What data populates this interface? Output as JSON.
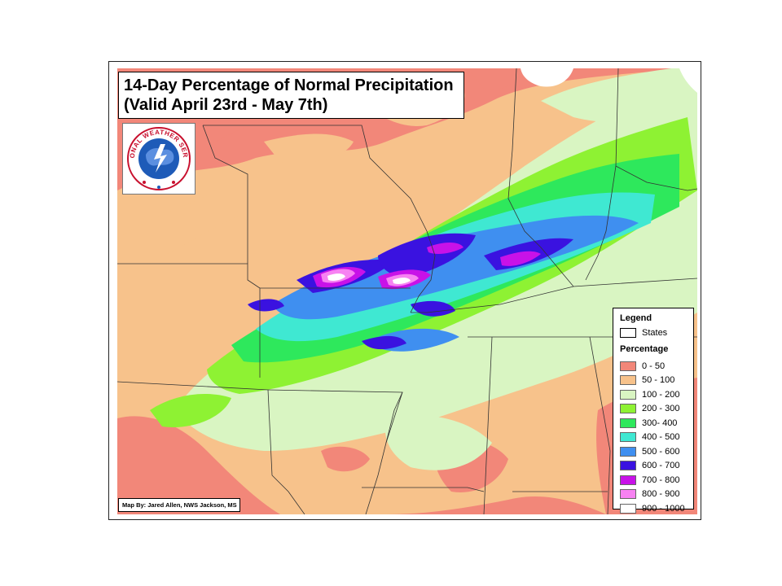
{
  "map": {
    "title_line1": "14-Day Percentage of Normal Precipitation",
    "title_line2": "(Valid April 23rd - May 7th)",
    "credit": "Map By: Jared Allen, NWS Jackson, MS",
    "logo_text": "NATIONAL WEATHER SERVICE"
  },
  "legend": {
    "title": "Legend",
    "states_label": "States",
    "percentage_title": "Percentage",
    "classes": [
      {
        "label": "0 - 50",
        "color": "#f28779"
      },
      {
        "label": "50 - 100",
        "color": "#f7c28b"
      },
      {
        "label": "100 - 200",
        "color": "#d9f5c2"
      },
      {
        "label": "200 - 300",
        "color": "#8ef233"
      },
      {
        "label": "300- 400",
        "color": "#2ee85c"
      },
      {
        "label": "400 - 500",
        "color": "#3fe8d2"
      },
      {
        "label": "500 - 600",
        "color": "#3f8ff0"
      },
      {
        "label": "600 - 700",
        "color": "#3a12e0"
      },
      {
        "label": "700 - 800",
        "color": "#c812e8"
      },
      {
        "label": "800 - 900",
        "color": "#f782f2"
      },
      {
        "label": "900 - 1000",
        "color": "#ffffff"
      }
    ]
  },
  "colors": {
    "state_border": "#333333",
    "frame": "#222222"
  }
}
